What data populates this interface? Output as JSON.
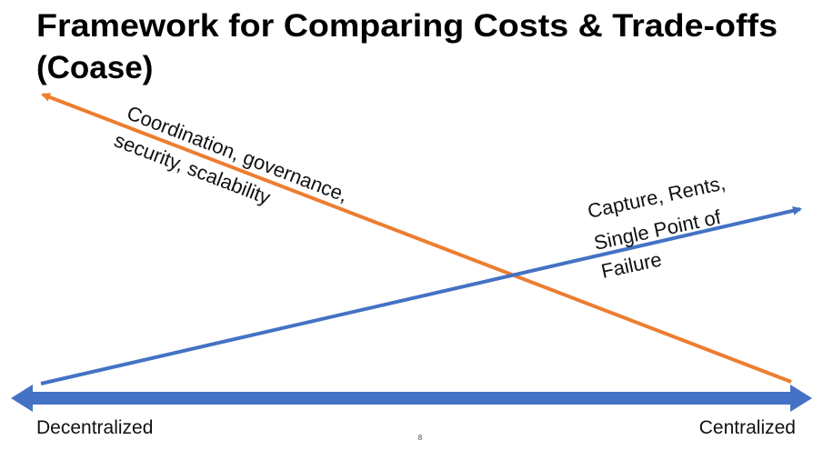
{
  "header": {
    "title_lines": [
      "Framework for Comparing Costs & Trade-offs",
      "(Coase)"
    ]
  },
  "arrows": [
    {
      "label_lines": [
        "Coordination, governance,",
        "security, scalability"
      ]
    },
    {
      "label_lines": [
        "Capture, Rents,",
        "Single Point of",
        "Failure"
      ]
    }
  ],
  "axis": {
    "left": "Decentralized",
    "right": "Centralized"
  },
  "footer": {
    "page_number": "8"
  }
}
